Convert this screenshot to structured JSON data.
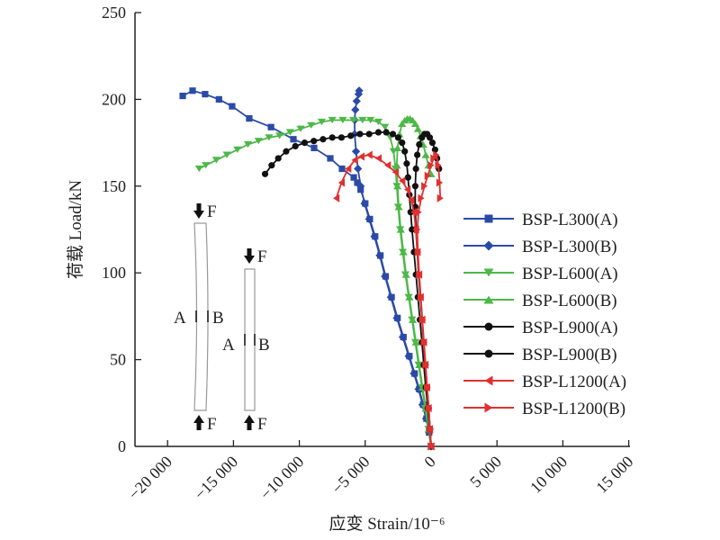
{
  "chart_data": {
    "type": "line",
    "title": "",
    "xlabel": "应变 Strain/10⁻⁶",
    "ylabel": "荷载 Load/kN",
    "xlim": [
      -22500,
      15000
    ],
    "ylim": [
      0,
      250
    ],
    "x_ticks": [
      -20000,
      -15000,
      -10000,
      -5000,
      0,
      5000,
      10000,
      15000
    ],
    "x_tick_labels": [
      "−20 000",
      "−15 000",
      "−10 000",
      "−5 000",
      "0",
      "5 000",
      "10 000",
      "15 000"
    ],
    "y_ticks": [
      0,
      50,
      100,
      150,
      200,
      250
    ],
    "y_tick_labels": [
      "0",
      "50",
      "100",
      "150",
      "200",
      "250"
    ],
    "grid": false,
    "legend_position": "right",
    "series": [
      {
        "name": "BSP-L300(A)",
        "color": "#2b4aa8",
        "marker": "square",
        "x": [
          0,
          -150,
          -350,
          -600,
          -900,
          -1250,
          -1650,
          -2100,
          -2550,
          -3000,
          -3450,
          -3850,
          -4250,
          -4650,
          -5000,
          -5350,
          -5600,
          -5870,
          -6760,
          -7650,
          -8880,
          -10450,
          -12150,
          -13800,
          -15100,
          -16100,
          -17150,
          -18100,
          -18850
        ],
        "y": [
          0,
          8,
          16,
          24,
          33,
          42,
          52,
          63,
          74,
          86,
          98,
          110,
          121,
          131,
          140,
          148,
          152,
          155,
          160,
          166,
          172,
          177,
          184,
          189,
          196,
          200,
          203,
          205,
          202
        ]
      },
      {
        "name": "BSP-L300(B)",
        "color": "#2b4aa8",
        "marker": "diamond",
        "x": [
          0,
          -150,
          -380,
          -650,
          -950,
          -1300,
          -1700,
          -2150,
          -2600,
          -3050,
          -3500,
          -3900,
          -4300,
          -4700,
          -5050,
          -5350,
          -5550,
          -5700,
          -5800,
          -5800,
          -5750,
          -5650,
          -5500,
          -5460
        ],
        "y": [
          0,
          8,
          16,
          24,
          33,
          42,
          52,
          63,
          74,
          86,
          98,
          110,
          121,
          131,
          140,
          150,
          160,
          170,
          180,
          188,
          194,
          199,
          203,
          205
        ]
      },
      {
        "name": "BSP-L600(A)",
        "color": "#4db848",
        "marker": "triangle-down",
        "x": [
          0,
          -200,
          -450,
          -700,
          -950,
          -1200,
          -1450,
          -1700,
          -1950,
          -2150,
          -2350,
          -2500,
          -2600,
          -2700,
          -2850,
          -3100,
          -3500,
          -4000,
          -4600,
          -5200,
          -5900,
          -6700,
          -7500,
          -8300,
          -9100,
          -9900,
          -10700,
          -11500,
          -12300,
          -13100,
          -13900,
          -14700,
          -15500,
          -16300,
          -17100,
          -17600
        ],
        "y": [
          0,
          10,
          22,
          34,
          47,
          60,
          73,
          86,
          99,
          112,
          125,
          138,
          150,
          160,
          170,
          178,
          184,
          187,
          188,
          188,
          188,
          188,
          188,
          187,
          185,
          183,
          181,
          179,
          178,
          176,
          174,
          171,
          168,
          165,
          162,
          160
        ]
      },
      {
        "name": "BSP-L600(B)",
        "color": "#4db848",
        "marker": "triangle-up",
        "x": [
          0,
          -180,
          -400,
          -650,
          -900,
          -1150,
          -1400,
          -1650,
          -1900,
          -2100,
          -2300,
          -2450,
          -2550,
          -2600,
          -2550,
          -2400,
          -2200,
          -2000,
          -1800,
          -1600,
          -1400,
          -1200,
          -1000,
          -800,
          -600,
          -400,
          -200,
          0
        ],
        "y": [
          0,
          10,
          22,
          34,
          47,
          60,
          73,
          86,
          99,
          112,
          125,
          138,
          150,
          162,
          172,
          180,
          186,
          188,
          189,
          189,
          188,
          186,
          183,
          179,
          174,
          168,
          162,
          157
        ]
      },
      {
        "name": "BSP-L900(A)",
        "color": "#111111",
        "marker": "circle",
        "x": [
          0,
          -120,
          -250,
          -400,
          -550,
          -700,
          -850,
          -1000,
          -1150,
          -1300,
          -1450,
          -1550,
          -1650,
          -1750,
          -1850,
          -2000,
          -2200,
          -2500,
          -2900,
          -3400,
          -4000,
          -4700,
          -5400,
          -6100,
          -6800,
          -7500,
          -8200,
          -8900,
          -9600,
          -10300,
          -11000,
          -11600,
          -12100,
          -12600
        ],
        "y": [
          0,
          10,
          22,
          34,
          47,
          60,
          73,
          86,
          99,
          112,
          125,
          135,
          145,
          155,
          163,
          170,
          175,
          178,
          180,
          181,
          181,
          180,
          180,
          179,
          178,
          178,
          177,
          176,
          175,
          173,
          170,
          166,
          162,
          157
        ]
      },
      {
        "name": "BSP-L900(B)",
        "color": "#111111",
        "marker": "circle",
        "x": [
          0,
          -80,
          -180,
          -300,
          -430,
          -560,
          -690,
          -820,
          -950,
          -1050,
          -1150,
          -1200,
          -1200,
          -1150,
          -1050,
          -900,
          -700,
          -500,
          -300,
          -100,
          100,
          300,
          450,
          600
        ],
        "y": [
          0,
          10,
          22,
          34,
          47,
          60,
          73,
          86,
          99,
          112,
          125,
          138,
          150,
          160,
          168,
          174,
          178,
          180,
          180,
          178,
          175,
          171,
          166,
          160
        ]
      },
      {
        "name": "BSP-L1200(A)",
        "color": "#e03030",
        "marker": "triangle-left",
        "x": [
          0,
          -100,
          -200,
          -320,
          -440,
          -560,
          -680,
          -800,
          -920,
          -1040,
          -1160,
          -1300,
          -1500,
          -1800,
          -2200,
          -2700,
          -3300,
          -4000,
          -4700,
          -5300,
          -5800,
          -6300,
          -6800,
          -7200
        ],
        "y": [
          0,
          10,
          22,
          34,
          47,
          60,
          73,
          86,
          99,
          112,
          125,
          135,
          142,
          148,
          153,
          158,
          162,
          166,
          168,
          167,
          165,
          160,
          152,
          143
        ]
      },
      {
        "name": "BSP-L1200(B)",
        "color": "#e03030",
        "marker": "triangle-right",
        "x": [
          0,
          -80,
          -180,
          -300,
          -420,
          -540,
          -660,
          -780,
          -900,
          -1000,
          -1050,
          -950,
          -750,
          -500,
          -250,
          0,
          200,
          400,
          550,
          650,
          700
        ],
        "y": [
          0,
          10,
          22,
          34,
          47,
          60,
          73,
          86,
          99,
          112,
          125,
          135,
          143,
          150,
          156,
          162,
          166,
          168,
          162,
          152,
          143
        ]
      }
    ],
    "annotations": {
      "force_label": "F",
      "gauge_a": "A",
      "gauge_b": "B"
    }
  }
}
